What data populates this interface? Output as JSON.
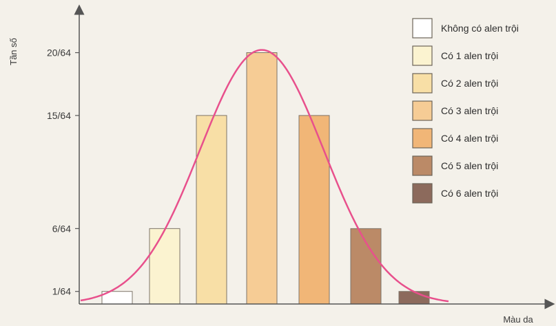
{
  "chart_data": {
    "type": "bar",
    "ylabel": "Tần số",
    "xlabel": "Màu da",
    "y_tick_labels": [
      "1/64",
      "6/64",
      "15/64",
      "20/64"
    ],
    "y_tick_values": [
      1,
      6,
      15,
      20
    ],
    "ylim": [
      0,
      22
    ],
    "values": [
      1,
      6,
      15,
      20,
      15,
      6,
      1
    ],
    "colors": [
      "#ffffff",
      "#fbf3d0",
      "#f8dfa6",
      "#f6cc95",
      "#f1b677",
      "#bb8a67",
      "#8c6a5c"
    ],
    "curve_color": "#e8508c",
    "legend_placement": "right",
    "legend": [
      {
        "label": "Không có alen trội",
        "color": "#ffffff"
      },
      {
        "label": "Có 1 alen trội",
        "color": "#fbf3d0"
      },
      {
        "label": "Có 2 alen trội",
        "color": "#f8dfa6"
      },
      {
        "label": "Có 3 alen trội",
        "color": "#f6cc95"
      },
      {
        "label": "Có 4 alen trội",
        "color": "#f1b677"
      },
      {
        "label": "Có 5 alen trội",
        "color": "#bb8a67"
      },
      {
        "label": "Có 6 alen trội",
        "color": "#8c6a5c"
      }
    ]
  }
}
